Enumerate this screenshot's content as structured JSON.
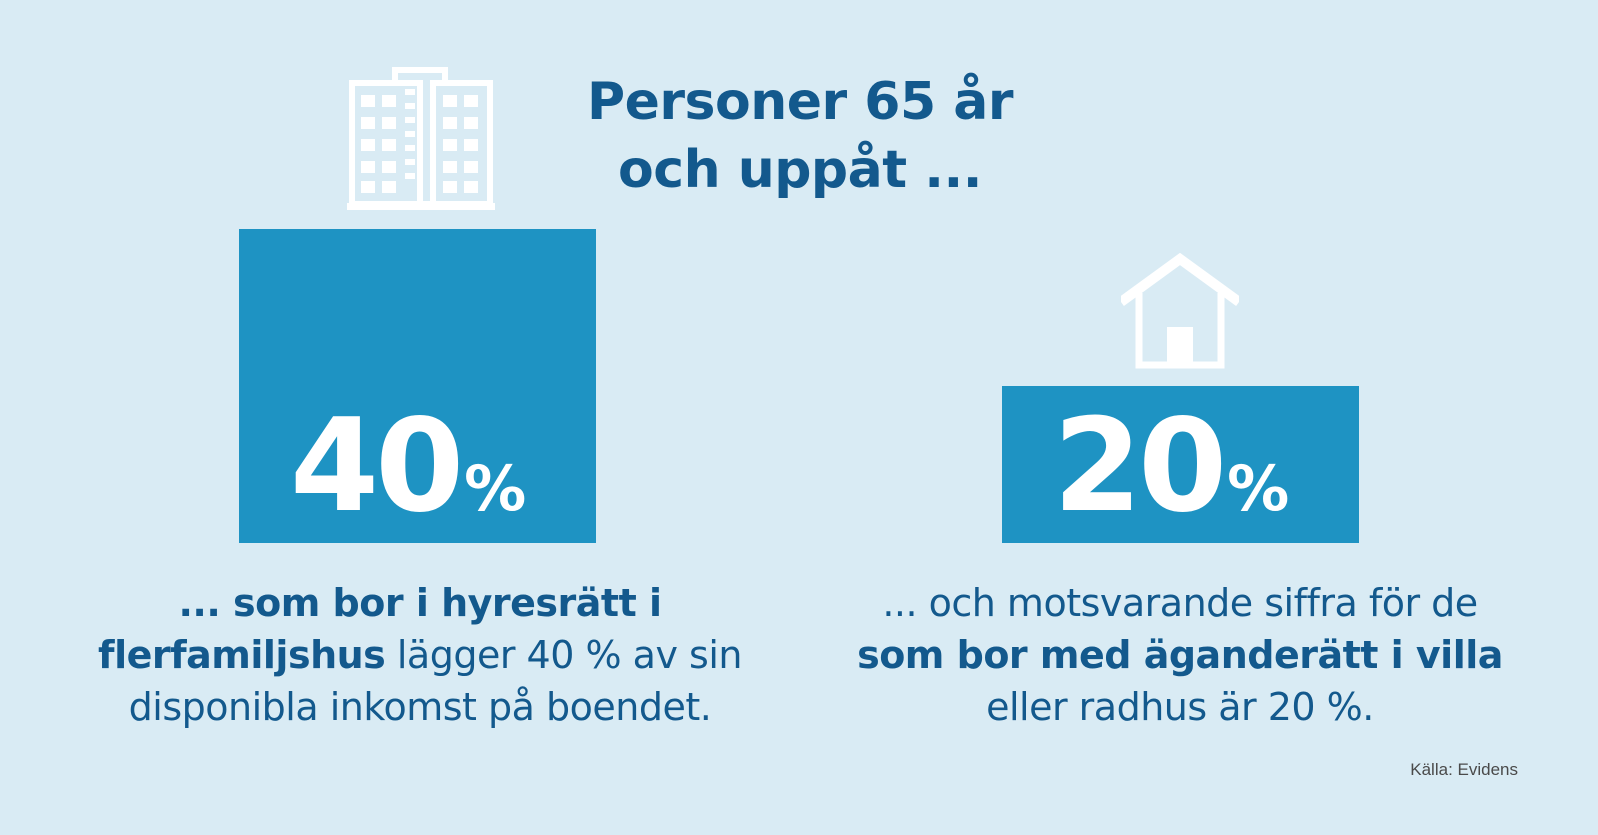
{
  "title": {
    "line1": "Personer 65 år",
    "line2": "och uppåt ..."
  },
  "left": {
    "icon": "apartment-building-icon",
    "value": "40",
    "unit": "%",
    "bar_level": 40,
    "text_bold": "... som bor i hyresrätt i flerfamiljshus",
    "text_regular": " lägger 40 % av sin disponibla inkomst på boendet."
  },
  "right": {
    "icon": "house-icon",
    "value": "20",
    "unit": "%",
    "bar_level": 20,
    "text_regular_1": "... och motsvarande siffra för de ",
    "text_bold": "som bor med äganderätt i villa",
    "text_regular_2": " eller radhus är 20 %."
  },
  "source": "Källa: Evidens",
  "colors": {
    "background": "#d9ebf4",
    "bar": "#1e93c3",
    "text": "#13598d",
    "icon": "#ffffff"
  }
}
